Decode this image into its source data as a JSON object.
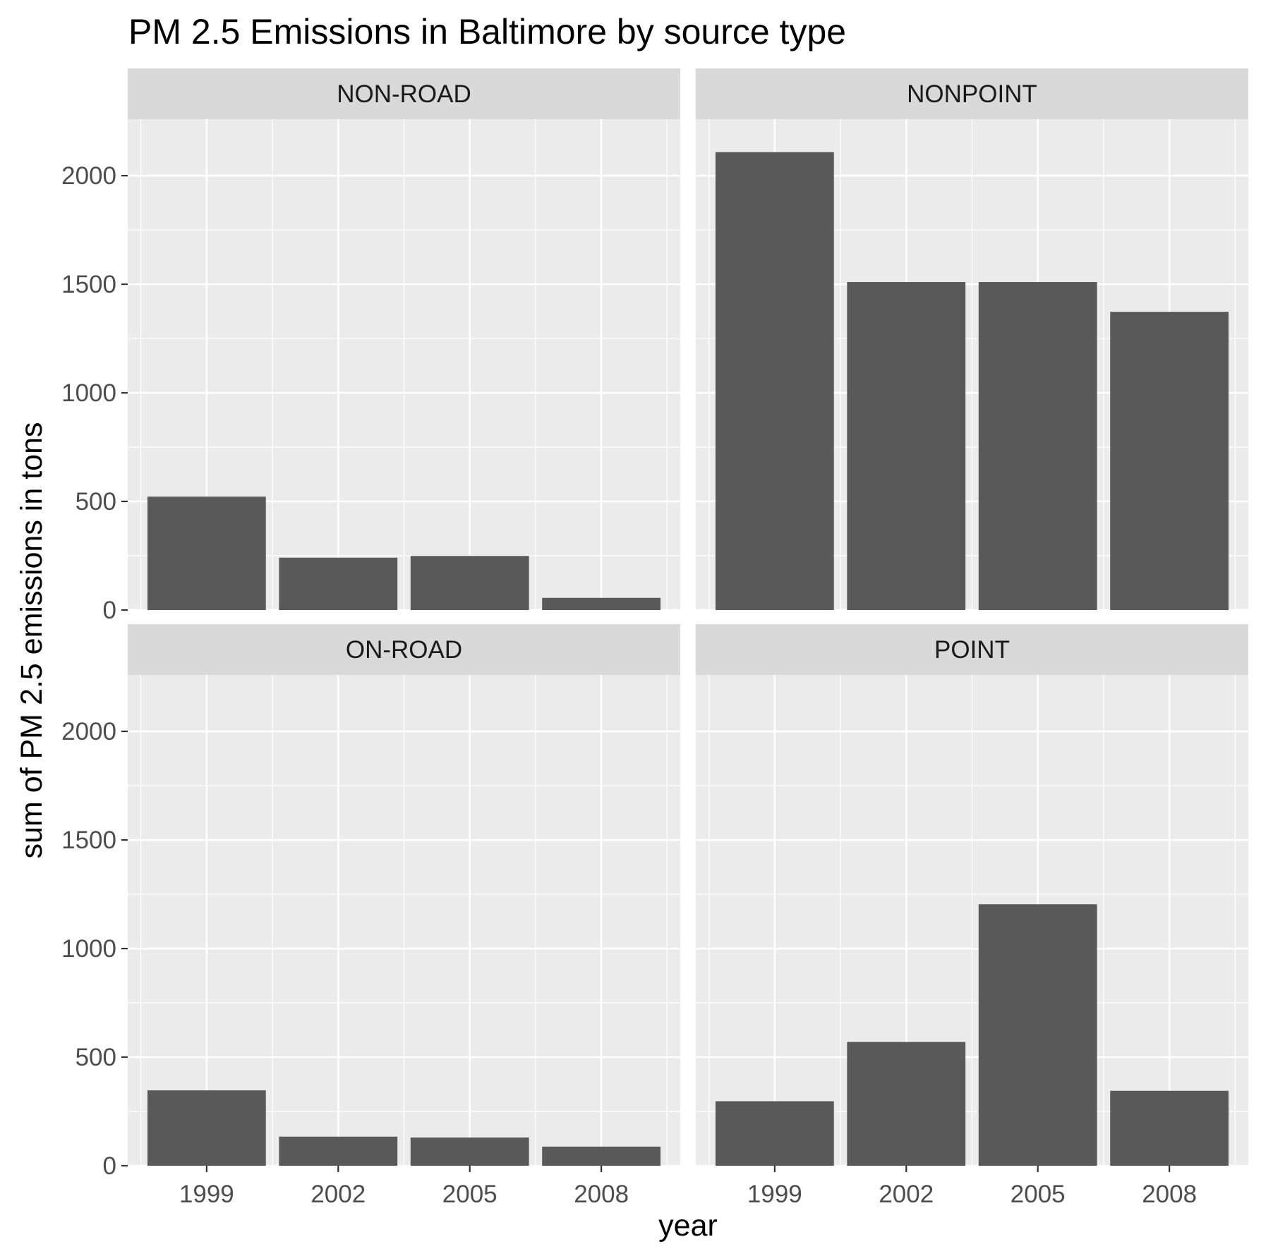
{
  "chart_data": {
    "type": "bar",
    "title": "PM 2.5 Emissions in Baltimore by source type",
    "xlabel": "year",
    "ylabel": "sum of PM 2.5 emissions in tons",
    "categories": [
      "1999",
      "2002",
      "2005",
      "2008"
    ],
    "y_ticks": [
      "0",
      "500",
      "1000",
      "1500",
      "2000"
    ],
    "ylim": [
      0,
      2260
    ],
    "grid": true,
    "facets": [
      {
        "name": "NON-ROAD",
        "values": [
          522,
          241,
          249,
          56
        ]
      },
      {
        "name": "NONPOINT",
        "values": [
          2108,
          1510,
          1510,
          1373
        ]
      },
      {
        "name": "ON-ROAD",
        "values": [
          347,
          134,
          130,
          88
        ]
      },
      {
        "name": "POINT",
        "values": [
          297,
          570,
          1204,
          345
        ]
      }
    ],
    "colors": {
      "bar": "#595959",
      "panel_background": "#ebebeb",
      "strip_background": "#d9d9d9",
      "grid_line": "#ffffff"
    }
  }
}
